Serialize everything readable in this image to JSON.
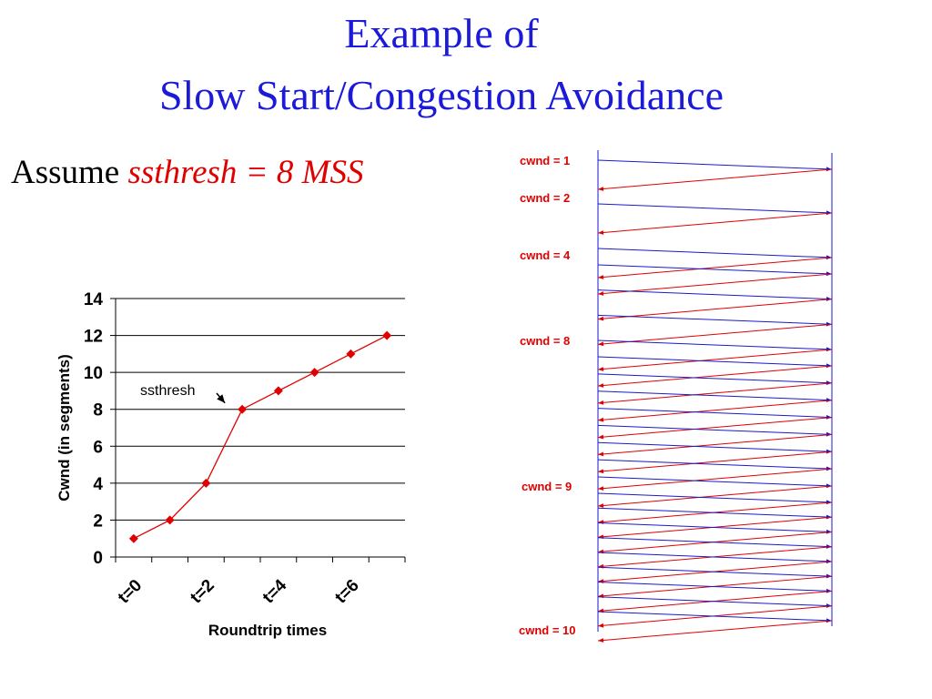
{
  "slide": {
    "title_line1": "Example  of",
    "title_line2": "Slow Start/Congestion Avoidance",
    "assume_prefix": "Assume ",
    "assume_value": "ssthresh = 8 MSS"
  },
  "chart_data": {
    "type": "line",
    "x_ticks": [
      "t=0",
      "t=2",
      "t=4",
      "t=6"
    ],
    "values": [
      1,
      2,
      4,
      8,
      9,
      10,
      11,
      12
    ],
    "xlabel": "Roundtrip times",
    "ylabel": "Cwnd (in segments)",
    "ylim": [
      0,
      14
    ],
    "yticks": [
      0,
      2,
      4,
      6,
      8,
      10,
      12,
      14
    ],
    "grid": true,
    "annotation": "ssthresh",
    "color": "#e00000"
  },
  "timeline": {
    "labels": [
      "cwnd = 1",
      "cwnd = 2",
      "cwnd = 4",
      "cwnd = 8",
      "cwnd = 9",
      "cwnd = 10"
    ],
    "rounds": [
      1,
      2,
      4,
      8,
      9
    ],
    "segment_color": "#1a1acc",
    "ack_color": "#e00000",
    "label_color": "#e00000"
  }
}
